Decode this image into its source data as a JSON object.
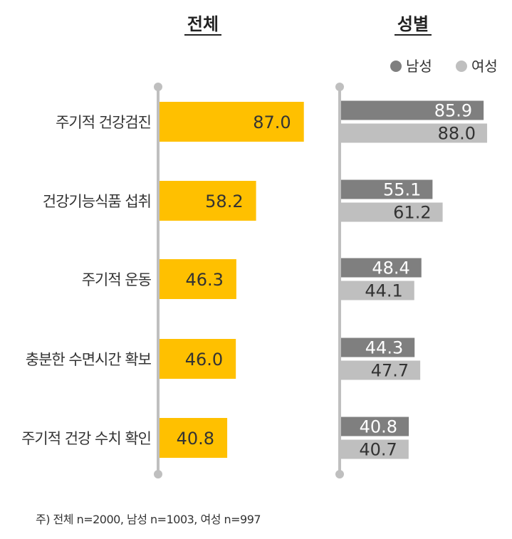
{
  "colors": {
    "total_bar": "#FFC000",
    "male_bar": "#7F7F7F",
    "female_bar": "#BFBFBF",
    "axis": "#BFBFBF"
  },
  "chart_data": {
    "type": "bar",
    "orientation": "horizontal",
    "categories": [
      "주기적 건강검진",
      "건강기능식품 섭취",
      "주기적 운동",
      "충분한 수면시간 확보",
      "주기적 건강 수치 확인"
    ],
    "panels": [
      {
        "title": "전체",
        "series": [
          {
            "name": "전체",
            "values": [
              87.0,
              58.2,
              46.3,
              46.0,
              40.8
            ]
          }
        ]
      },
      {
        "title": "성별",
        "series": [
          {
            "name": "남성",
            "values": [
              85.9,
              55.1,
              48.4,
              44.3,
              40.8
            ]
          },
          {
            "name": "여성",
            "values": [
              88.0,
              61.2,
              44.1,
              47.7,
              40.7
            ]
          }
        ]
      }
    ],
    "legend": [
      "남성",
      "여성"
    ],
    "legend_position": "top-right",
    "xlim": [
      0,
      100
    ],
    "grid": false
  },
  "footnote": "주) 전체 n=2000, 남성 n=1003, 여성 n=997"
}
